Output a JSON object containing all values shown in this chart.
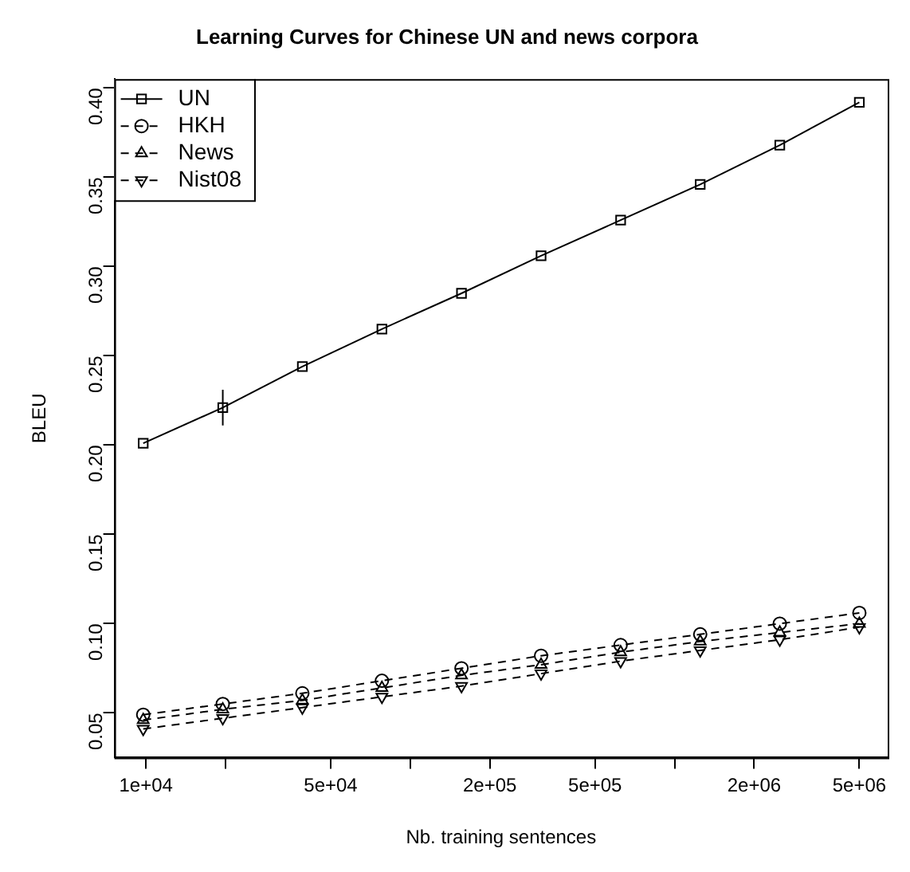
{
  "chart_data": {
    "type": "line",
    "title": "Learning Curves for Chinese UN and news corpora",
    "xlabel": "Nb. training sentences",
    "ylabel": "BLEU",
    "x": [
      9765.625,
      19531.25,
      39062.5,
      78125,
      156250,
      312500,
      625000,
      1250000,
      2500000,
      5000000
    ],
    "log": "x",
    "xlim": [
      7600,
      6400000
    ],
    "xticks": [
      {
        "value": 10000,
        "label": "1e+04"
      },
      {
        "value": 20000,
        "label": null
      },
      {
        "value": 50000,
        "label": "5e+04"
      },
      {
        "value": 100000,
        "label": null
      },
      {
        "value": 200000,
        "label": "2e+05"
      },
      {
        "value": 500000,
        "label": "5e+05"
      },
      {
        "value": 1000000,
        "label": null
      },
      {
        "value": 2000000,
        "label": "2e+06"
      },
      {
        "value": 5000000,
        "label": "5e+06"
      }
    ],
    "ylim": [
      0.025,
      0.405
    ],
    "yticks": [
      {
        "value": 0.05,
        "label": "0.05"
      },
      {
        "value": 0.1,
        "label": "0.10"
      },
      {
        "value": 0.15,
        "label": "0.15"
      },
      {
        "value": 0.2,
        "label": "0.20"
      },
      {
        "value": 0.25,
        "label": "0.25"
      },
      {
        "value": 0.3,
        "label": "0.30"
      },
      {
        "value": 0.35,
        "label": "0.35"
      },
      {
        "value": 0.4,
        "label": "0.40"
      }
    ],
    "grid": false,
    "legend": "top left",
    "series": [
      {
        "name": "UN",
        "color": "#000000",
        "marker": "square",
        "line_style": "solid",
        "values": [
          0.201,
          0.221,
          0.244,
          0.265,
          0.285,
          0.306,
          0.326,
          0.346,
          0.368,
          0.392
        ],
        "errors": [
          null,
          0.01,
          null,
          null,
          null,
          null,
          null,
          null,
          null,
          null
        ]
      },
      {
        "name": "HKH",
        "color": "#000000",
        "marker": "circle",
        "line_style": "dashed",
        "values": [
          0.049,
          0.055,
          0.061,
          0.068,
          0.075,
          0.082,
          0.088,
          0.094,
          0.1,
          0.106
        ]
      },
      {
        "name": "News",
        "color": "#000000",
        "marker": "triangle",
        "line_style": "dashed",
        "values": [
          0.046,
          0.052,
          0.057,
          0.064,
          0.071,
          0.077,
          0.084,
          0.09,
          0.095,
          0.1
        ]
      },
      {
        "name": "Nist08",
        "color": "#000000",
        "marker": "triangle-down",
        "line_style": "dashed",
        "values": [
          0.041,
          0.047,
          0.053,
          0.059,
          0.065,
          0.072,
          0.079,
          0.085,
          0.091,
          0.098
        ]
      }
    ]
  }
}
